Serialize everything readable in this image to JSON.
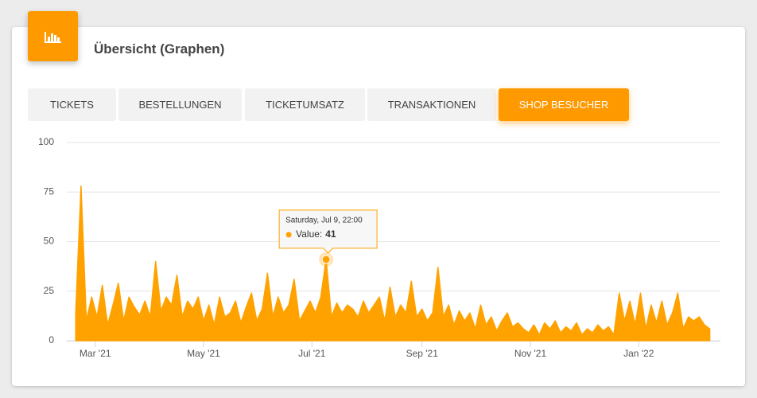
{
  "header": {
    "title": "Übersicht (Graphen)"
  },
  "tabs": [
    {
      "label": "TICKETS",
      "active": false
    },
    {
      "label": "BESTELLUNGEN",
      "active": false
    },
    {
      "label": "TICKETUMSATZ",
      "active": false
    },
    {
      "label": "TRANSAKTIONEN",
      "active": false
    },
    {
      "label": "SHOP BESUCHER",
      "active": true
    }
  ],
  "tooltip": {
    "title": "Saturday, Jul 9, 22:00",
    "label": "Value:",
    "index": 47
  },
  "chart_data": {
    "type": "area",
    "color": "#ffa200",
    "grid": true,
    "x": [
      "2021-02-18",
      "2021-02-21",
      "2021-02-24",
      "2021-02-27",
      "2021-03-02",
      "2021-03-05",
      "2021-03-08",
      "2021-03-11",
      "2021-03-14",
      "2021-03-17",
      "2021-03-20",
      "2021-03-23",
      "2021-03-26",
      "2021-03-29",
      "2021-04-01",
      "2021-04-04",
      "2021-04-07",
      "2021-04-10",
      "2021-04-13",
      "2021-04-16",
      "2021-04-19",
      "2021-04-22",
      "2021-04-25",
      "2021-04-28",
      "2021-05-01",
      "2021-05-04",
      "2021-05-07",
      "2021-05-10",
      "2021-05-13",
      "2021-05-16",
      "2021-05-19",
      "2021-05-22",
      "2021-05-25",
      "2021-05-28",
      "2021-05-31",
      "2021-06-03",
      "2021-06-06",
      "2021-06-09",
      "2021-06-12",
      "2021-06-15",
      "2021-06-18",
      "2021-06-21",
      "2021-06-24",
      "2021-06-27",
      "2021-06-30",
      "2021-07-03",
      "2021-07-06",
      "2021-07-09",
      "2021-07-12",
      "2021-07-15",
      "2021-07-18",
      "2021-07-21",
      "2021-07-24",
      "2021-07-27",
      "2021-07-30",
      "2021-08-02",
      "2021-08-05",
      "2021-08-08",
      "2021-08-11",
      "2021-08-14",
      "2021-08-17",
      "2021-08-20",
      "2021-08-23",
      "2021-08-26",
      "2021-08-29",
      "2021-09-01",
      "2021-09-04",
      "2021-09-07",
      "2021-09-10",
      "2021-09-13",
      "2021-09-16",
      "2021-09-19",
      "2021-09-22",
      "2021-09-25",
      "2021-09-28",
      "2021-10-01",
      "2021-10-04",
      "2021-10-07",
      "2021-10-10",
      "2021-10-13",
      "2021-10-16",
      "2021-10-19",
      "2021-10-22",
      "2021-10-25",
      "2021-10-28",
      "2021-10-31",
      "2021-11-03",
      "2021-11-06",
      "2021-11-09",
      "2021-11-12",
      "2021-11-15",
      "2021-11-18",
      "2021-11-21",
      "2021-11-24",
      "2021-11-27",
      "2021-11-30",
      "2021-12-03",
      "2021-12-06",
      "2021-12-09",
      "2021-12-12",
      "2021-12-15",
      "2021-12-18",
      "2021-12-21",
      "2021-12-24",
      "2021-12-27",
      "2021-12-30",
      "2022-01-02",
      "2022-01-05",
      "2022-01-08",
      "2022-01-11",
      "2022-01-14",
      "2022-01-17",
      "2022-01-20",
      "2022-01-23",
      "2022-01-26",
      "2022-01-29",
      "2022-02-01",
      "2022-02-04",
      "2022-02-07",
      "2022-02-10"
    ],
    "values": [
      14,
      78,
      10,
      22,
      12,
      28,
      8,
      18,
      29,
      10,
      22,
      17,
      13,
      20,
      12,
      40,
      15,
      22,
      18,
      33,
      12,
      20,
      16,
      22,
      10,
      18,
      8,
      22,
      12,
      14,
      20,
      9,
      17,
      24,
      10,
      16,
      34,
      12,
      22,
      14,
      18,
      31,
      10,
      15,
      20,
      14,
      22,
      41,
      12,
      19,
      14,
      18,
      16,
      12,
      20,
      14,
      18,
      22,
      10,
      27,
      12,
      18,
      14,
      30,
      12,
      16,
      10,
      14,
      37,
      12,
      18,
      8,
      15,
      10,
      14,
      6,
      18,
      8,
      12,
      5,
      10,
      14,
      7,
      9,
      6,
      4,
      8,
      3,
      9,
      6,
      10,
      4,
      7,
      5,
      9,
      3,
      6,
      4,
      8,
      5,
      7,
      3,
      24,
      10,
      20,
      8,
      24,
      6,
      18,
      9,
      20,
      8,
      14,
      24,
      6,
      12,
      10,
      12,
      8,
      6
    ],
    "xlim": [
      "2021-02-13",
      "2022-02-16"
    ],
    "xticks": [
      {
        "value": "2021-03-01",
        "label": "Mar '21"
      },
      {
        "value": "2021-05-01",
        "label": "May '21"
      },
      {
        "value": "2021-07-01",
        "label": "Jul '21"
      },
      {
        "value": "2021-09-01",
        "label": "Sep '21"
      },
      {
        "value": "2021-11-01",
        "label": "Nov '21"
      },
      {
        "value": "2022-01-01",
        "label": "Jan '22"
      }
    ],
    "ylim": [
      0,
      100
    ],
    "yticks": [
      0,
      25,
      50,
      75,
      100
    ]
  }
}
